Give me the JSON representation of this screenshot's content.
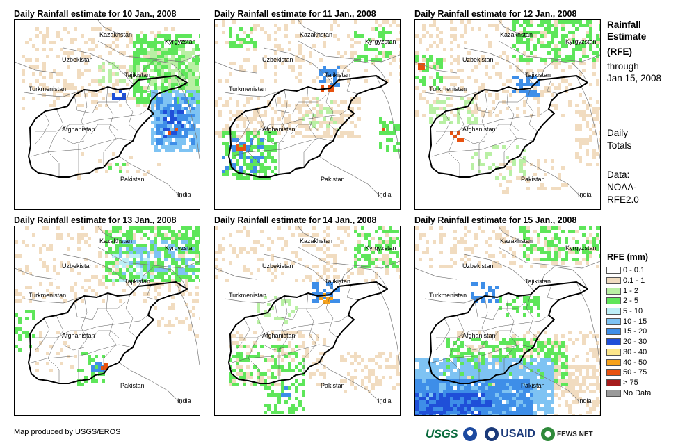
{
  "panels": [
    {
      "title": "Daily Rainfall estimate for 10 Jan., 2008",
      "pattern": "jan10"
    },
    {
      "title": "Daily Rainfall estimate for 11 Jan., 2008",
      "pattern": "jan11"
    },
    {
      "title": "Daily Rainfall estimate for 12 Jan., 2008",
      "pattern": "jan12"
    },
    {
      "title": "Daily Rainfall estimate for 13 Jan., 2008",
      "pattern": "jan13"
    },
    {
      "title": "Daily Rainfall estimate for 14 Jan., 2008",
      "pattern": "jan14"
    },
    {
      "title": "Daily Rainfall estimate for 15 Jan., 2008",
      "pattern": "jan15"
    }
  ],
  "map_labels": {
    "kazakhstan": "Kazakhstan",
    "kyrgyzstan": "Kyrgyzstan",
    "uzbekistan": "Uzbekistan",
    "tajikistan": "Tajikistan",
    "turkmenistan": "Turkmenistan",
    "afghanistan": "Afghanistan",
    "pakistan": "Pakistan",
    "india": "India"
  },
  "side": {
    "title_line1": "Rainfall",
    "title_line2": "Estimate",
    "title_line3": "(RFE)",
    "through": "through",
    "through_date": "Jan 15, 2008",
    "daily1": "Daily",
    "daily2": "Totals",
    "data1": "Data:",
    "data2": "NOAA-",
    "data3": "RFE2.0"
  },
  "legend": {
    "title": "RFE (mm)",
    "items": [
      {
        "label": "0 - 0.1",
        "color": "#ffffff"
      },
      {
        "label": "0.1 - 1",
        "color": "#f1dcc0"
      },
      {
        "label": "1 - 2",
        "color": "#b9f0a4"
      },
      {
        "label": "2 - 5",
        "color": "#5ee65a"
      },
      {
        "label": "5 - 10",
        "color": "#bdeff7"
      },
      {
        "label": "10 - 15",
        "color": "#7ec3f3"
      },
      {
        "label": "15 - 20",
        "color": "#3e8ee8"
      },
      {
        "label": "20 - 30",
        "color": "#1f4fd8"
      },
      {
        "label": "30 - 40",
        "color": "#fde68a"
      },
      {
        "label": "40 - 50",
        "color": "#f7a21b"
      },
      {
        "label": "50 - 75",
        "color": "#e8520f"
      },
      {
        "label": "> 75",
        "color": "#a61b1b"
      },
      {
        "label": "No Data",
        "color": "#9a9a9a"
      }
    ]
  },
  "credit": "Map produced by USGS/EROS",
  "logos": {
    "usgs": "USGS",
    "usaid": "USAID",
    "fewsnet": "FEWS NET"
  }
}
